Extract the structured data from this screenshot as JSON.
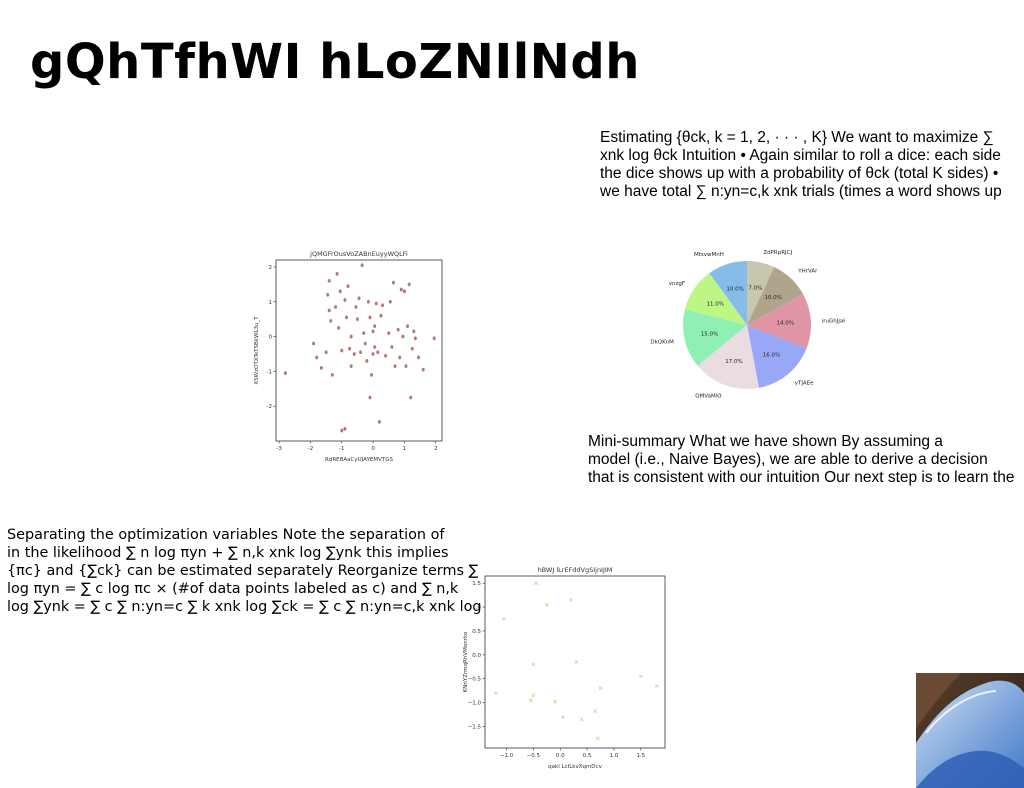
{
  "title": "gQhTfhWI hLoZNIlNdh",
  "text_blocks": [
    {
      "lines": [
        "Estimating {θck, k = 1, 2, · · · , K} We want to maximize ∑",
        "xnk log θck Intuition • Again similar to roll a dice: each side",
        "the dice shows up with a probability of θck (total K sides) •",
        "we have total ∑ n:yn=c,k xnk trials (times a word shows up"
      ]
    },
    {
      "lines": [
        "Mini-summary What we have shown By assuming a",
        "model (i.e., Naive Bayes), we are able to derive a decision",
        "that is consistent with our intuition Our next step is to learn the"
      ]
    },
    {
      "lines": [
        "Separating the optimization variables Note the separation of",
        "in the likelihood ∑ n log πyn + ∑ n,k xnk log ∑ynk this implies",
        "{πc} and {∑ck} can be estimated separately Reorganize terms ∑",
        "log πyn = ∑ c log πc × (#of data points labeled as c) and ∑ n,k",
        "log ∑ynk = ∑ c ∑ n:yn=c ∑ k xnk log ∑ck = ∑ c ∑ n:yn=c,k xnk log"
      ]
    }
  ],
  "chart_data": [
    {
      "type": "scatter",
      "title": "jQMGFrOusVoZABnEuyyWQLFi",
      "xlabel": "RdREBAaCyUJAYEMVTGS",
      "ylabel": "XSWzOTXTeTSBkWL3u_T",
      "xlim": [
        -3.1,
        2.2
      ],
      "ylim": [
        -3.0,
        2.2
      ],
      "xticks": [
        -3,
        -2,
        -1,
        0,
        1,
        2
      ],
      "yticks": [
        -2,
        -1,
        0,
        1,
        2
      ],
      "marker": "circle",
      "color": "#b47a74",
      "points": [
        [
          -2.8,
          -1.05
        ],
        [
          -1.9,
          -0.2
        ],
        [
          -1.8,
          -0.6
        ],
        [
          -1.65,
          -0.9
        ],
        [
          -1.5,
          -0.45
        ],
        [
          -1.4,
          1.6
        ],
        [
          -1.45,
          1.2
        ],
        [
          -1.4,
          0.75
        ],
        [
          -1.35,
          0.45
        ],
        [
          -1.3,
          -1.1
        ],
        [
          -1.2,
          0.85
        ],
        [
          -1.15,
          1.8
        ],
        [
          -1.1,
          0.25
        ],
        [
          -1.05,
          1.3
        ],
        [
          -1.0,
          -0.4
        ],
        [
          -1.0,
          -2.7
        ],
        [
          -0.9,
          1.05
        ],
        [
          -0.9,
          -2.65
        ],
        [
          -0.85,
          0.55
        ],
        [
          -0.8,
          1.45
        ],
        [
          -0.75,
          -0.35
        ],
        [
          -0.7,
          -0.85
        ],
        [
          -0.7,
          0.0
        ],
        [
          -0.6,
          -0.5
        ],
        [
          -0.55,
          0.85
        ],
        [
          -0.5,
          0.5
        ],
        [
          -0.45,
          1.1
        ],
        [
          -0.4,
          -0.45
        ],
        [
          -0.35,
          2.05
        ],
        [
          -0.3,
          0.1
        ],
        [
          -0.25,
          -0.2
        ],
        [
          -0.2,
          -0.7
        ],
        [
          -0.15,
          1.0
        ],
        [
          -0.1,
          -1.75
        ],
        [
          -0.1,
          0.55
        ],
        [
          -0.05,
          -1.1
        ],
        [
          0.0,
          -0.5
        ],
        [
          0.0,
          0.15
        ],
        [
          0.05,
          0.3
        ],
        [
          0.05,
          -0.3
        ],
        [
          0.1,
          0.95
        ],
        [
          0.15,
          -0.45
        ],
        [
          0.2,
          -2.45
        ],
        [
          0.25,
          0.6
        ],
        [
          0.3,
          0.9
        ],
        [
          0.4,
          -0.55
        ],
        [
          0.5,
          0.1
        ],
        [
          0.55,
          1.0
        ],
        [
          0.6,
          -0.3
        ],
        [
          0.65,
          1.55
        ],
        [
          0.7,
          -0.85
        ],
        [
          0.8,
          0.2
        ],
        [
          0.85,
          -0.6
        ],
        [
          0.9,
          1.35
        ],
        [
          0.95,
          0.0
        ],
        [
          1.0,
          1.3
        ],
        [
          1.05,
          -0.85
        ],
        [
          1.1,
          0.3
        ],
        [
          1.15,
          1.5
        ],
        [
          1.2,
          -1.75
        ],
        [
          1.25,
          -0.35
        ],
        [
          1.3,
          0.15
        ],
        [
          1.35,
          -0.05
        ],
        [
          1.45,
          -0.6
        ],
        [
          1.6,
          -0.95
        ],
        [
          1.95,
          -0.05
        ]
      ]
    },
    {
      "type": "pie",
      "labels": [
        "ZdPRpRJCJ",
        "YHrVAr",
        "iruGhJjaH",
        "yTJAEe",
        "QMVaMiO",
        "DkQKnM",
        "vnzgF",
        "MtsvwMnH"
      ],
      "values": [
        7.0,
        10.0,
        14.0,
        16.0,
        17.0,
        15.0,
        11.0,
        10.0
      ],
      "value_labels": [
        "7.0%",
        "10.0%",
        "14.0%",
        "16.0%",
        "17.0%",
        "15.0%",
        "11.0%",
        "10.0%"
      ],
      "colors": [
        "#c6c7ad",
        "#b1a48c",
        "#df95a3",
        "#98a8f7",
        "#e9dde1",
        "#90f0b4",
        "#bdf685",
        "#86bde8"
      ],
      "start_angle": 90,
      "direction": "clockwise"
    },
    {
      "type": "scatter",
      "title": "hBWJ lLrEFddVgSIjnIJIM",
      "xlabel": "qakl LcILkvXqmDcv",
      "ylabel": "KNnYZrmqRhVMonrko",
      "xlim": [
        -1.4,
        1.95
      ],
      "ylim": [
        -1.95,
        1.65
      ],
      "xticks": [
        -1.0,
        -0.5,
        0.0,
        0.5,
        1.0,
        1.5
      ],
      "yticks": [
        -1.5,
        -1.0,
        -0.5,
        0.0,
        0.5,
        1.0,
        1.5
      ],
      "tick_labels_x": [
        "−1.0",
        "−0.5",
        "0.0",
        "0.5",
        "1.0",
        "1.5"
      ],
      "tick_labels_y": [
        "−1.5",
        "−1.0",
        "−0.5",
        "0.0",
        "0.5",
        "1.0",
        "1.5"
      ],
      "marker": "x",
      "color": "#b5e58f",
      "points": [
        [
          -0.45,
          1.5
        ],
        [
          0.2,
          1.15
        ],
        [
          -0.25,
          1.05
        ],
        [
          -1.05,
          0.75
        ],
        [
          -0.5,
          -0.2
        ],
        [
          0.3,
          -0.15
        ],
        [
          -1.2,
          -0.8
        ],
        [
          -0.5,
          -0.85
        ],
        [
          -0.55,
          -0.95
        ],
        [
          -0.1,
          -0.98
        ],
        [
          0.05,
          -1.3
        ],
        [
          0.4,
          -1.35
        ],
        [
          0.65,
          -1.18
        ],
        [
          0.75,
          -0.7
        ],
        [
          0.7,
          -1.75
        ],
        [
          1.5,
          -0.45
        ],
        [
          1.8,
          -0.65
        ]
      ]
    }
  ]
}
